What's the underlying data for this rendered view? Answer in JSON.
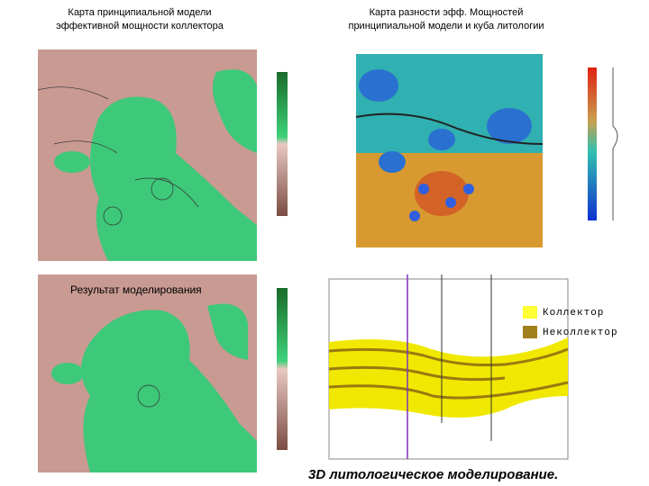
{
  "titles": {
    "left": [
      "Карта принципиальной модели",
      "эффективной мощности коллектора"
    ],
    "right": [
      "Карта разности эфф. Мощностей",
      "принципиальной модели и куба литологии"
    ]
  },
  "result_label": "Результат моделирования",
  "legend": [
    "Коллектор",
    "Неколлектор"
  ],
  "caption": "3D литологическое моделирование."
}
